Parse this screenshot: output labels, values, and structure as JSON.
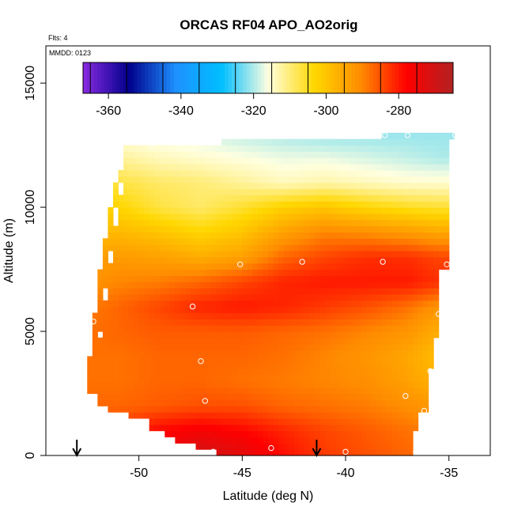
{
  "chart_data": {
    "type": "heatmap",
    "title": "ORCAS RF04 APO_AO2orig",
    "xlabel": "Latitude (deg N)",
    "ylabel": "Altitude (m)",
    "notes": [
      "Flts: 4",
      "MMDD: 0123"
    ],
    "xlim": [
      -54.5,
      -33.0
    ],
    "ylim": [
      0,
      16500
    ],
    "x_ticks": [
      "-50",
      "-45",
      "-40",
      "-35"
    ],
    "x_tick_values": [
      -50,
      -45,
      -40,
      -35
    ],
    "y_ticks": [
      "0",
      "5000",
      "10000",
      "15000"
    ],
    "y_tick_values": [
      0,
      5000,
      10000,
      15000
    ],
    "colorbar": {
      "range": [
        -367,
        -265
      ],
      "tick_labels": [
        "-360",
        "-340",
        "-320",
        "-300",
        "-280"
      ],
      "tick_values": [
        -360,
        -340,
        -320,
        -300,
        -280
      ],
      "colors": [
        "#8a2be2",
        "#00008b",
        "#1e90ff",
        "#00bfff",
        "#ffffe0",
        "#ffd700",
        "#ff8c00",
        "#ff0000",
        "#b22222"
      ]
    },
    "field": {
      "latitudes": [
        -52.5,
        -51.0,
        -49.0,
        -47.0,
        -45.0,
        -43.0,
        -41.0,
        -39.0,
        -37.0,
        -35.5
      ],
      "altitudes": [
        0,
        1000,
        2000,
        3000,
        4000,
        5000,
        6000,
        7000,
        8000,
        9000,
        10000,
        11000,
        12000,
        12900
      ],
      "values": [
        [
          -290,
          -285,
          -275,
          -270,
          -273,
          -279,
          -283,
          -285,
          -287,
          -288
        ],
        [
          -285,
          -283,
          -278,
          -276,
          -278,
          -281,
          -284,
          -286,
          -288,
          -290
        ],
        [
          -287,
          -287,
          -286,
          -285,
          -285,
          -287,
          -288,
          -289,
          -291,
          -293
        ],
        [
          -288,
          -288,
          -287,
          -287,
          -288,
          -289,
          -290,
          -291,
          -294,
          -297
        ],
        [
          -288,
          -288,
          -287,
          -287,
          -287,
          -288,
          -290,
          -292,
          -295,
          -299
        ],
        [
          -288,
          -287,
          -286,
          -286,
          -286,
          -287,
          -288,
          -290,
          -292,
          -296
        ],
        [
          -289,
          -287,
          -284,
          -281,
          -280,
          -281,
          -283,
          -285,
          -288,
          -292
        ],
        [
          -292,
          -290,
          -289,
          -287,
          -284,
          -281,
          -280,
          -280,
          -280,
          -282
        ],
        [
          -294,
          -293,
          -294,
          -296,
          -294,
          -287,
          -284,
          -282,
          -282,
          -284
        ],
        [
          -299,
          -298,
          -300,
          -303,
          -300,
          -294,
          -290,
          -291,
          -293,
          -295
        ],
        [
          -302,
          -303,
          -307,
          -309,
          -306,
          -302,
          -300,
          -303,
          -305,
          -306
        ],
        [
          -305,
          -307,
          -309,
          -310,
          -312,
          -314,
          -313,
          -314,
          -315,
          -315
        ],
        [
          -310,
          -312,
          -314,
          -315,
          -316,
          -317,
          -317,
          -318,
          -319,
          -320
        ],
        [
          -315,
          -316,
          -317,
          -318,
          -319,
          -320,
          -321,
          -321,
          -321,
          -321
        ]
      ]
    },
    "coverage": {
      "top_altitude": [
        [
          -50.8,
          12000
        ],
        [
          -50.8,
          12500
        ],
        [
          -46.0,
          12500
        ],
        [
          -45.9,
          12700
        ],
        [
          -38.4,
          12700
        ],
        [
          -38.3,
          12950
        ],
        [
          -34.7,
          12950
        ],
        [
          -34.7,
          12800
        ]
      ],
      "left_edge": [
        [
          -52.3,
          2400
        ],
        [
          -52.5,
          2400
        ],
        [
          -52.5,
          4000
        ],
        [
          -52.3,
          4000
        ],
        [
          -52.3,
          5800
        ],
        [
          -52.0,
          5800
        ],
        [
          -52.0,
          7500
        ],
        [
          -51.7,
          7500
        ],
        [
          -51.7,
          8800
        ],
        [
          -51.5,
          8800
        ],
        [
          -51.5,
          10000
        ],
        [
          -51.2,
          10000
        ],
        [
          -51.2,
          11000
        ],
        [
          -50.8,
          11000
        ]
      ],
      "bottom_edge": [
        [
          -52.3,
          2400
        ],
        [
          -52.0,
          2400
        ],
        [
          -52.0,
          2000
        ],
        [
          -51.4,
          2000
        ],
        [
          -51.4,
          1700
        ],
        [
          -50.5,
          1700
        ],
        [
          -50.5,
          1400
        ],
        [
          -49.5,
          1400
        ],
        [
          -49.5,
          1100
        ],
        [
          -48.8,
          1100
        ],
        [
          -48.8,
          800
        ],
        [
          -48.2,
          800
        ],
        [
          -48.2,
          500
        ],
        [
          -47.3,
          500
        ],
        [
          -47.3,
          200
        ],
        [
          -46.2,
          200
        ],
        [
          -46.2,
          0
        ],
        [
          -36.7,
          0
        ],
        [
          -36.7,
          900
        ]
      ],
      "right_edge": [
        [
          -36.7,
          900
        ],
        [
          -36.4,
          900
        ],
        [
          -36.4,
          1800
        ],
        [
          -36.1,
          1800
        ],
        [
          -36.1,
          3500
        ],
        [
          -35.8,
          3500
        ],
        [
          -35.8,
          4800
        ],
        [
          -35.6,
          4800
        ],
        [
          -35.6,
          6200
        ],
        [
          -35.4,
          6200
        ],
        [
          -35.4,
          7400
        ],
        [
          -35.1,
          7400
        ],
        [
          -35.1,
          10600
        ],
        [
          -34.9,
          10600
        ],
        [
          -34.9,
          12800
        ],
        [
          -34.7,
          12800
        ]
      ]
    },
    "flight_points": [
      [
        -52.8,
        2400
      ],
      [
        -52.2,
        5400
      ],
      [
        -49.4,
        12500
      ],
      [
        -47.4,
        6000
      ],
      [
        -47.0,
        3800
      ],
      [
        -46.8,
        2200
      ],
      [
        -46.4,
        150
      ],
      [
        -45.1,
        7700
      ],
      [
        -43.6,
        300
      ],
      [
        -42.1,
        7800
      ],
      [
        -40.0,
        150
      ],
      [
        -38.2,
        7800
      ],
      [
        -38.1,
        12900
      ],
      [
        -37.1,
        2400
      ],
      [
        -37.0,
        12900
      ],
      [
        -36.6,
        150
      ],
      [
        -36.2,
        1800
      ],
      [
        -35.9,
        3400
      ],
      [
        -35.5,
        5700
      ],
      [
        -35.1,
        7700
      ],
      [
        -34.7,
        12900
      ]
    ],
    "arrows": [
      -53.0,
      -41.4
    ]
  }
}
